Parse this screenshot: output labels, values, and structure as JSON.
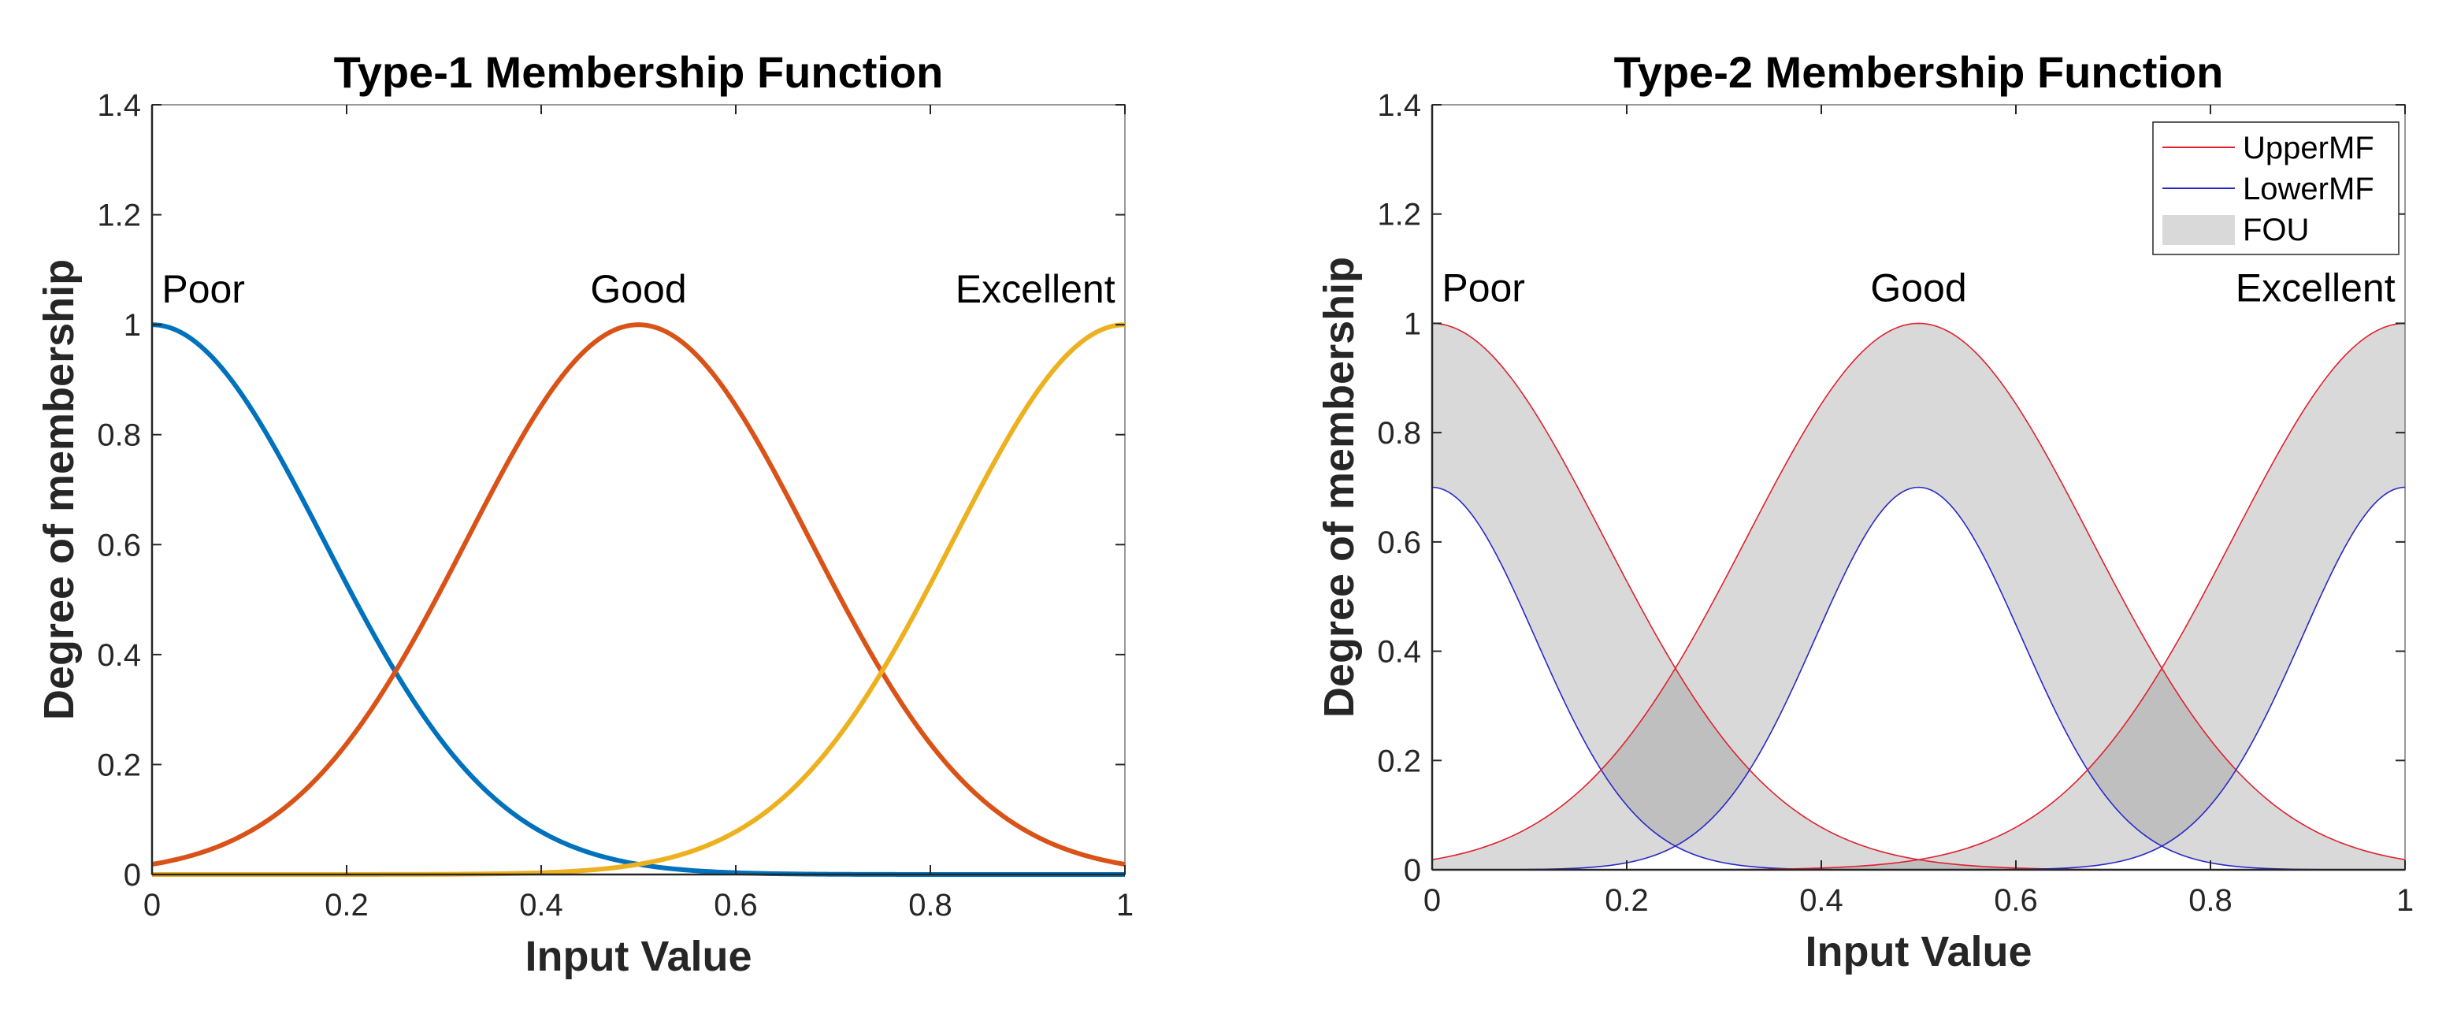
{
  "chart_data": [
    {
      "type": "line",
      "title": "Type-1 Membership Function",
      "xlabel": "Input Value",
      "ylabel": "Degree of membership",
      "xlim": [
        0,
        1
      ],
      "ylim": [
        0,
        1.4
      ],
      "xticks": [
        "0",
        "0.2",
        "0.4",
        "0.6",
        "0.8",
        "1"
      ],
      "yticks": [
        "0",
        "0.2",
        "0.4",
        "0.6",
        "0.8",
        "1",
        "1.2",
        "1.4"
      ],
      "curve_shape": "gaussian",
      "sigma": 0.177,
      "series": [
        {
          "name": "Poor",
          "center": 0.0,
          "height": 1.0,
          "color": "#0072BD"
        },
        {
          "name": "Good",
          "center": 0.5,
          "height": 1.0,
          "color": "#D95319"
        },
        {
          "name": "Excellent",
          "center": 1.0,
          "height": 1.0,
          "color": "#EDB120"
        }
      ],
      "annotations": [
        {
          "text": "Poor",
          "x": 0.01,
          "y": 1.04
        },
        {
          "text": "Good",
          "x": 0.5,
          "y": 1.04
        },
        {
          "text": "Excellent",
          "x": 0.99,
          "y": 1.04
        }
      ]
    },
    {
      "type": "area",
      "title": "Type-2 Membership Function",
      "xlabel": "Input Value",
      "ylabel": "Degree of membership",
      "xlim": [
        0,
        1
      ],
      "ylim": [
        0,
        1.4
      ],
      "xticks": [
        "0",
        "0.2",
        "0.4",
        "0.6",
        "0.8",
        "1"
      ],
      "yticks": [
        "0",
        "0.2",
        "0.4",
        "0.6",
        "0.8",
        "1",
        "1.2",
        "1.4"
      ],
      "curve_shape": "gaussian",
      "upper_sigma": 0.177,
      "lower_sigma": 0.106,
      "series": [
        {
          "name": "Poor",
          "center": 0.0,
          "upper_height": 1.0,
          "lower_height": 0.7
        },
        {
          "name": "Good",
          "center": 0.5,
          "upper_height": 1.0,
          "lower_height": 0.7
        },
        {
          "name": "Excellent",
          "center": 1.0,
          "upper_height": 1.0,
          "lower_height": 0.7
        }
      ],
      "legend": {
        "position": "top-right",
        "entries": [
          {
            "label": "UpperMF",
            "color": "#E0202E",
            "kind": "line"
          },
          {
            "label": "LowerMF",
            "color": "#2828C8",
            "kind": "line"
          },
          {
            "label": "FOU",
            "color": "#D9D9D9",
            "kind": "patch"
          }
        ]
      },
      "annotations": [
        {
          "text": "Poor",
          "x": 0.01,
          "y": 1.04
        },
        {
          "text": "Good",
          "x": 0.5,
          "y": 1.04
        },
        {
          "text": "Excellent",
          "x": 0.99,
          "y": 1.04
        }
      ]
    }
  ]
}
